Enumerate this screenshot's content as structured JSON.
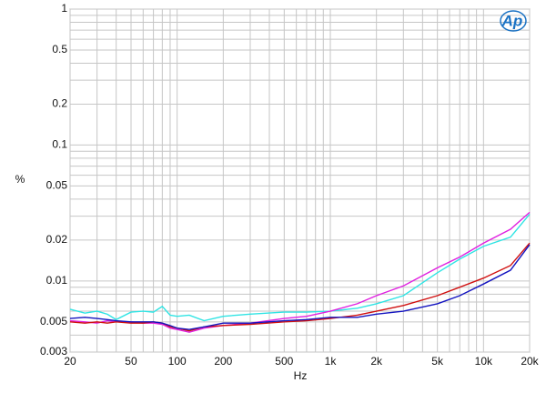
{
  "chart_data": {
    "type": "line",
    "logo": "Ap",
    "xlabel": "Hz",
    "ylabel": "%",
    "xscale": "log",
    "yscale": "log",
    "xlim": [
      20,
      20000
    ],
    "ylim": [
      0.003,
      1
    ],
    "xticks": [
      20,
      50,
      100,
      200,
      500,
      {
        "value": 1000,
        "label": "1k"
      },
      {
        "value": 2000,
        "label": "2k"
      },
      {
        "value": 5000,
        "label": "5k"
      },
      {
        "value": 10000,
        "label": "10k"
      },
      {
        "value": 20000,
        "label": "20k"
      }
    ],
    "yticks": [
      0.003,
      0.005,
      0.01,
      0.02,
      0.05,
      0.1,
      0.2,
      0.5,
      1
    ],
    "grid": true,
    "xgrid": [
      30,
      40,
      60,
      70,
      80,
      90,
      300,
      400,
      600,
      700,
      800,
      900,
      3000,
      4000,
      6000,
      7000,
      8000,
      9000
    ],
    "ygrid": [
      0.004,
      0.006,
      0.007,
      0.008,
      0.009,
      0.03,
      0.04,
      0.06,
      0.07,
      0.08,
      0.09,
      0.3,
      0.4,
      0.6,
      0.7,
      0.8,
      0.9
    ],
    "x": [
      20,
      25,
      30,
      35,
      40,
      50,
      60,
      70,
      80,
      90,
      100,
      120,
      150,
      200,
      300,
      500,
      700,
      1000,
      1500,
      2000,
      3000,
      5000,
      7000,
      10000,
      15000,
      20000
    ],
    "series": [
      {
        "color": "#30e4e4",
        "values": [
          0.0062,
          0.0058,
          0.006,
          0.0057,
          0.0052,
          0.0059,
          0.006,
          0.0059,
          0.0065,
          0.0056,
          0.0055,
          0.0056,
          0.0051,
          0.0055,
          0.0057,
          0.0059,
          0.0059,
          0.006,
          0.0063,
          0.0068,
          0.0078,
          0.0115,
          0.0145,
          0.018,
          0.021,
          0.031
        ]
      },
      {
        "color": "#e020e0",
        "values": [
          0.0051,
          0.005,
          0.0049,
          0.0051,
          0.005,
          0.005,
          0.0049,
          0.0049,
          0.0048,
          0.0045,
          0.0044,
          0.0042,
          0.0045,
          0.0047,
          0.0049,
          0.0053,
          0.0055,
          0.006,
          0.0068,
          0.0078,
          0.0092,
          0.0125,
          0.015,
          0.019,
          0.024,
          0.032
        ]
      },
      {
        "color": "#d01010",
        "values": [
          0.005,
          0.0049,
          0.005,
          0.0049,
          0.005,
          0.0049,
          0.0049,
          0.005,
          0.0049,
          0.0046,
          0.0045,
          0.0043,
          0.0046,
          0.0047,
          0.0048,
          0.005,
          0.0051,
          0.0053,
          0.0056,
          0.006,
          0.0066,
          0.0078,
          0.009,
          0.0105,
          0.013,
          0.019
        ]
      },
      {
        "color": "#1414c0",
        "values": [
          0.0053,
          0.0054,
          0.0053,
          0.0052,
          0.0051,
          0.005,
          0.005,
          0.005,
          0.0049,
          0.0047,
          0.0045,
          0.0044,
          0.0046,
          0.0049,
          0.0049,
          0.0051,
          0.0052,
          0.0054,
          0.0054,
          0.0057,
          0.006,
          0.0068,
          0.0078,
          0.0095,
          0.012,
          0.0185
        ]
      }
    ]
  }
}
